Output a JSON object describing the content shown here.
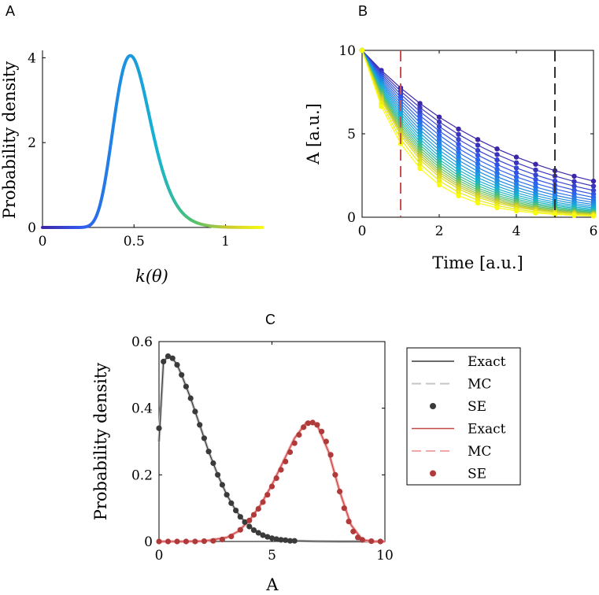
{
  "panels": {
    "a": {
      "letter": "A"
    },
    "b": {
      "letter": "B"
    },
    "c": {
      "letter": "C"
    }
  },
  "colors": {
    "black_series": "#3a3a3a",
    "black_mc": "#c4c4c4",
    "red_series": "#b03a3a",
    "red_exact": "#c84848",
    "red_mc": "#f2a8a8",
    "vline_red": "#c85050",
    "vline_black": "#333333",
    "parula_start": "#3e26a8",
    "parula_mid": "#15b4d0",
    "parula_end": "#f9fb0e"
  },
  "chart_data": [
    {
      "id": "A",
      "type": "line",
      "xlabel": "k(θ)",
      "ylabel": "Probability density",
      "xlim": [
        0,
        1.2
      ],
      "ylim": [
        0,
        4.1
      ],
      "xticks": [
        0,
        0.5,
        1
      ],
      "xtick_labels": [
        "0",
        "0.5",
        "1"
      ],
      "yticks": [
        0,
        2,
        4
      ],
      "ytick_labels": [
        "0",
        "2",
        "4"
      ],
      "distribution": {
        "kind": "lognormal",
        "mode": 0.48,
        "sigma": 0.21,
        "peak": 4.05
      },
      "x": [
        0,
        0.2,
        0.25,
        0.3,
        0.35,
        0.4,
        0.45,
        0.48,
        0.5,
        0.55,
        0.6,
        0.65,
        0.7,
        0.75,
        0.8,
        0.85,
        0.9,
        1.0,
        1.1,
        1.2
      ],
      "y": [
        0,
        0.0,
        0.05,
        0.5,
        1.6,
        2.9,
        3.9,
        4.05,
        4.0,
        3.5,
        2.7,
        1.9,
        1.2,
        0.7,
        0.38,
        0.2,
        0.1,
        0.02,
        0.0,
        0.0
      ]
    },
    {
      "id": "B",
      "type": "line",
      "xlabel": "Time [a.u.]",
      "ylabel": "A [a.u.]",
      "xlim": [
        0,
        6
      ],
      "ylim": [
        0,
        10
      ],
      "xticks": [
        0,
        2,
        4,
        6
      ],
      "xtick_labels": [
        "0",
        "2",
        "4",
        "6"
      ],
      "yticks": [
        0,
        5,
        10
      ],
      "ytick_labels": [
        "0",
        "5",
        "10"
      ],
      "initial_value": 10,
      "time_points": [
        0,
        0.5,
        1,
        1.5,
        2,
        2.5,
        3,
        3.5,
        4,
        4.5,
        5,
        5.5,
        6
      ],
      "decay_rates": [
        0.255,
        0.28,
        0.305,
        0.33,
        0.355,
        0.38,
        0.405,
        0.43,
        0.455,
        0.48,
        0.505,
        0.53,
        0.555,
        0.58,
        0.605,
        0.63,
        0.655,
        0.68,
        0.71,
        0.76,
        0.82
      ],
      "vertical_lines": [
        {
          "x": 1,
          "color_key": "vline_red"
        },
        {
          "x": 5,
          "color_key": "vline_black"
        }
      ]
    },
    {
      "id": "C",
      "type": "line",
      "xlabel": "A",
      "ylabel": "Probability density",
      "xlim": [
        0,
        10
      ],
      "ylim": [
        0,
        0.6
      ],
      "xticks": [
        0,
        5,
        10
      ],
      "xtick_labels": [
        "0",
        "5",
        "10"
      ],
      "yticks": [
        0,
        0.2,
        0.4,
        0.6
      ],
      "ytick_labels": [
        "0",
        "0.2",
        "0.4",
        "0.6"
      ],
      "legend_position": "outside-right",
      "legend": [
        {
          "label": "Exact",
          "style": "solid",
          "color_key": "black_series"
        },
        {
          "label": "MC",
          "style": "dashed",
          "color_key": "black_mc"
        },
        {
          "label": "SE",
          "style": "marker",
          "color_key": "black_series"
        },
        {
          "label": "Exact",
          "style": "solid",
          "color_key": "red_exact"
        },
        {
          "label": "MC",
          "style": "dashed",
          "color_key": "red_mc"
        },
        {
          "label": "SE",
          "style": "marker",
          "color_key": "red_series"
        }
      ],
      "series": [
        {
          "name": "Exact (t=5)",
          "x": [
            0,
            0.2,
            0.4,
            0.6,
            0.8,
            1.0,
            1.4,
            1.8,
            2.2,
            2.6,
            3.0,
            3.4,
            3.8,
            4.2,
            4.6,
            5.0,
            5.5,
            6.0,
            7.0,
            8.0,
            9.0,
            10.0
          ],
          "y": [
            0.3,
            0.54,
            0.555,
            0.55,
            0.53,
            0.5,
            0.43,
            0.35,
            0.27,
            0.2,
            0.14,
            0.093,
            0.058,
            0.034,
            0.019,
            0.01,
            0.004,
            0.002,
            0.0005,
            0.0001,
            0,
            0
          ]
        },
        {
          "name": "SE (t=5)",
          "x": [
            0,
            0.2,
            0.4,
            0.6,
            0.8,
            1.0,
            1.2,
            1.4,
            1.6,
            1.8,
            2.0,
            2.2,
            2.4,
            2.6,
            2.8,
            3.0,
            3.2,
            3.4,
            3.6,
            3.8,
            4.0,
            4.2,
            4.4,
            4.6,
            4.8,
            5.0,
            5.2,
            5.4,
            5.6,
            5.8,
            6.0
          ],
          "y": [
            0.34,
            0.54,
            0.556,
            0.55,
            0.53,
            0.5,
            0.465,
            0.43,
            0.39,
            0.35,
            0.31,
            0.27,
            0.235,
            0.2,
            0.17,
            0.14,
            0.115,
            0.093,
            0.074,
            0.058,
            0.045,
            0.034,
            0.026,
            0.019,
            0.014,
            0.01,
            0.007,
            0.005,
            0.004,
            0.002,
            0.002
          ]
        },
        {
          "name": "Exact (t=1)",
          "x": [
            0,
            1,
            2,
            3,
            3.5,
            4.0,
            4.5,
            5.0,
            5.5,
            6.0,
            6.5,
            6.8,
            7.0,
            7.5,
            8.0,
            8.5,
            9.0,
            9.5,
            10.0
          ],
          "y": [
            0,
            0,
            0.001,
            0.012,
            0.03,
            0.063,
            0.11,
            0.17,
            0.24,
            0.31,
            0.355,
            0.357,
            0.35,
            0.27,
            0.15,
            0.05,
            0.005,
            0,
            0
          ]
        },
        {
          "name": "SE (t=1)",
          "x": [
            0,
            0.4,
            0.8,
            1.2,
            1.6,
            2.0,
            2.4,
            2.8,
            3.2,
            3.6,
            4.0,
            4.2,
            4.4,
            4.6,
            4.8,
            5.0,
            5.2,
            5.4,
            5.6,
            5.8,
            6.0,
            6.2,
            6.4,
            6.6,
            6.8,
            7.0,
            7.2,
            7.4,
            7.6,
            7.8,
            8.0,
            8.2,
            8.4,
            8.6,
            8.8,
            9.0,
            9.4,
            9.8
          ],
          "y": [
            0,
            0,
            0,
            0,
            0,
            0.001,
            0.002,
            0.006,
            0.015,
            0.035,
            0.063,
            0.08,
            0.098,
            0.118,
            0.14,
            0.165,
            0.19,
            0.215,
            0.24,
            0.268,
            0.295,
            0.32,
            0.343,
            0.355,
            0.357,
            0.35,
            0.33,
            0.3,
            0.26,
            0.2,
            0.15,
            0.1,
            0.06,
            0.03,
            0.012,
            0.005,
            0.001,
            0
          ]
        }
      ]
    }
  ]
}
